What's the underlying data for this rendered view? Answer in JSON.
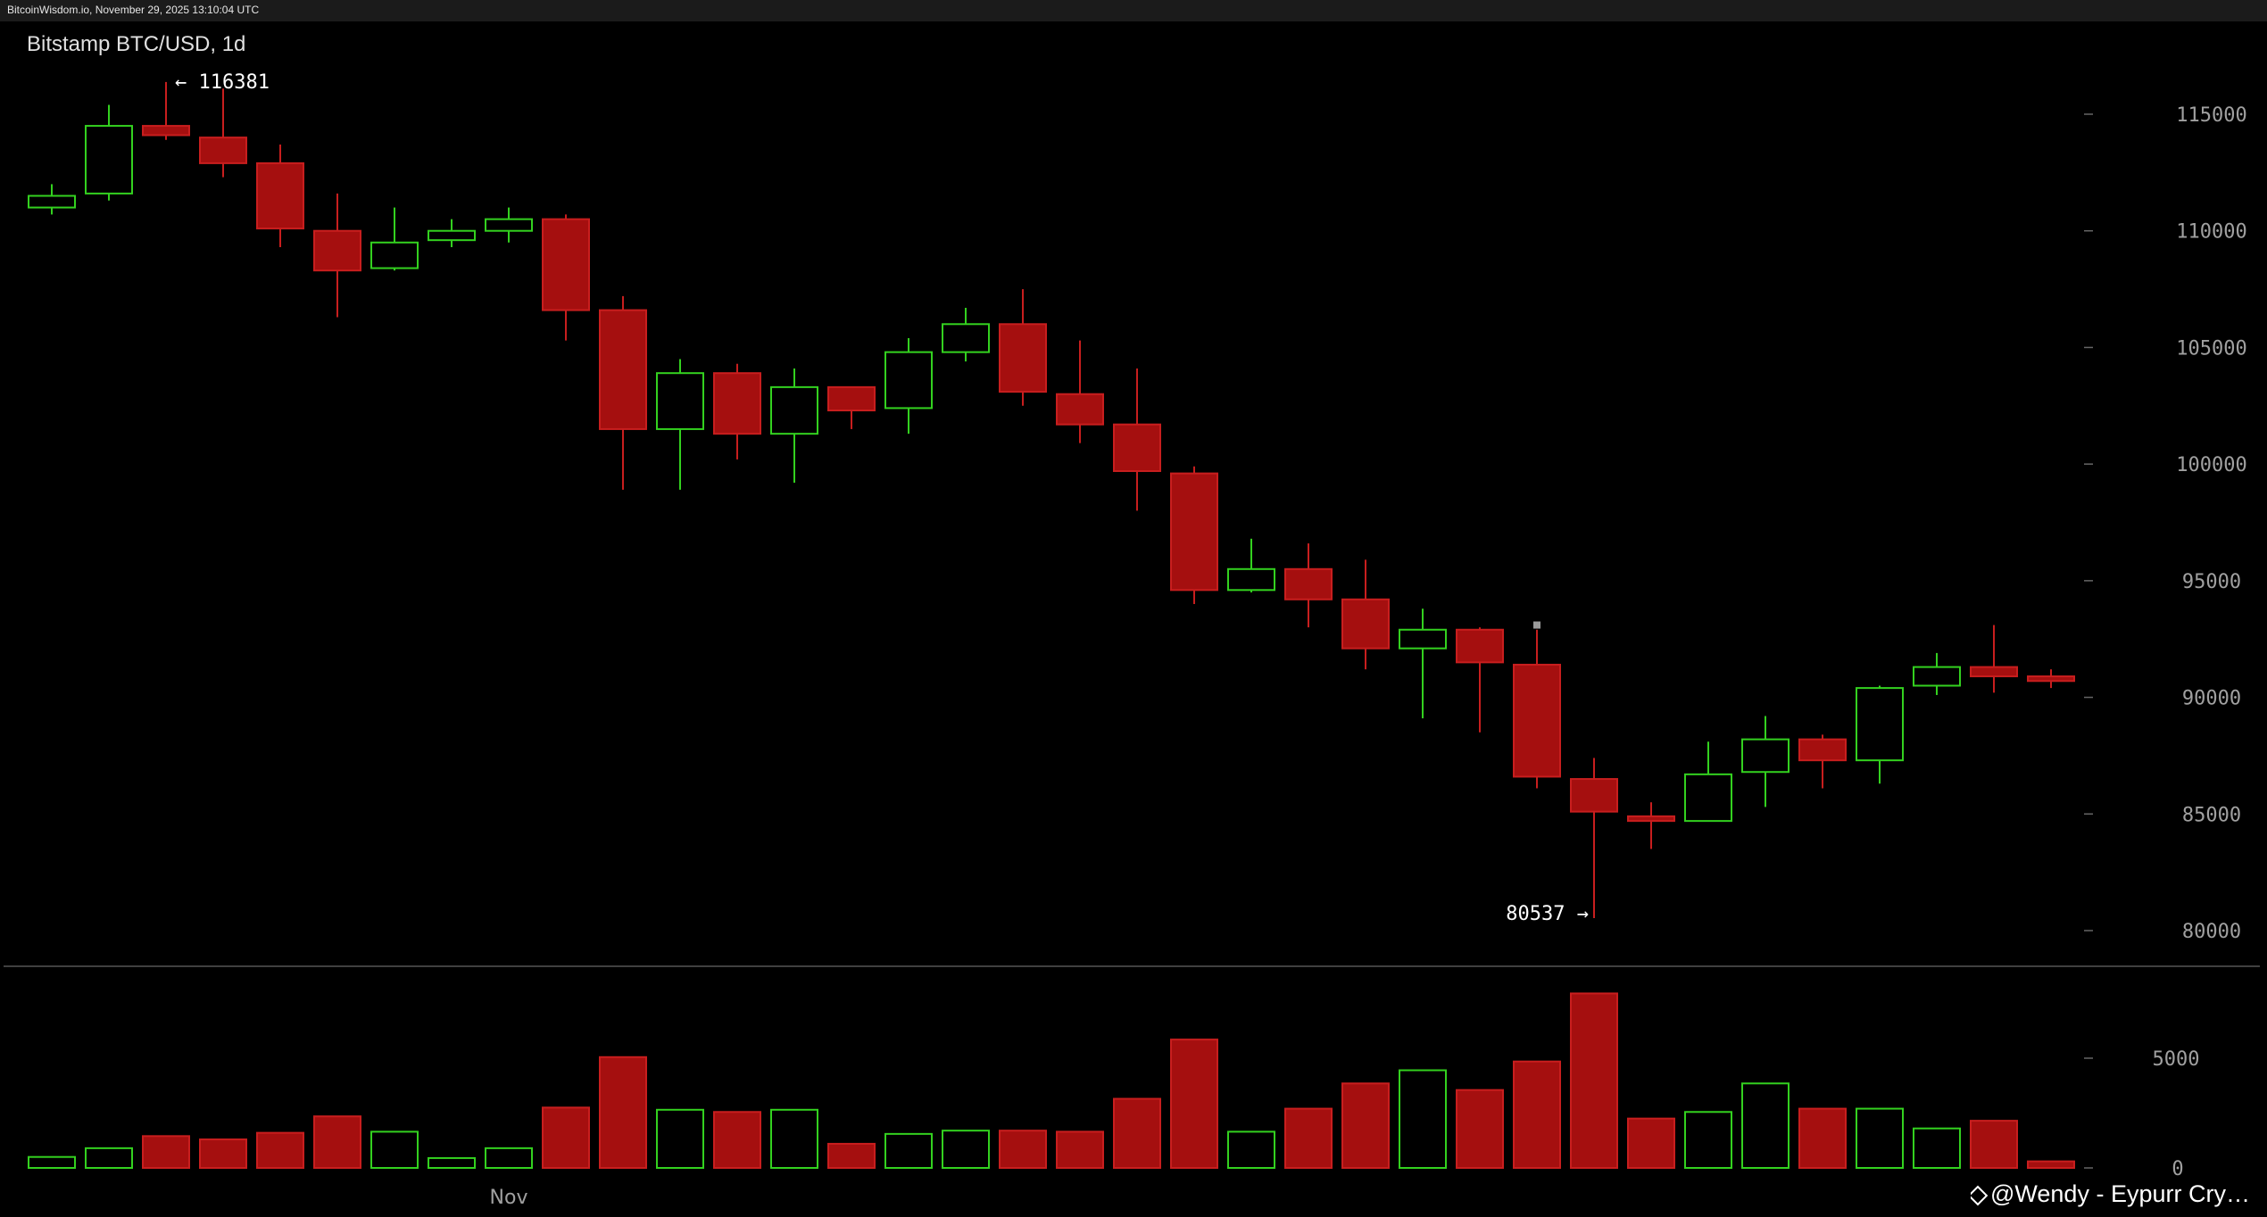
{
  "header": {
    "source_text": "BitcoinWisdom.io, November 29, 2025 13:10:04 UTC"
  },
  "watermark": {
    "text": "@Wendy - Eypurr Crypt...",
    "icon": "diamond-icon"
  },
  "colors": {
    "up": "#33d11f",
    "down": "#a50f0f",
    "down_edge": "#c81e1e",
    "grid_text": "#a0a0a0",
    "separator": "#555555"
  },
  "chart_data": {
    "type": "candlestick",
    "title": "Bitstamp BTC/USD, 1d",
    "price_axis": {
      "ticks": [
        80000,
        85000,
        90000,
        95000,
        100000,
        105000,
        110000,
        115000
      ],
      "range": [
        77500,
        118500
      ]
    },
    "volume_axis": {
      "ticks": [
        0,
        5000
      ],
      "range": [
        0,
        8200
      ]
    },
    "x_labels": [
      {
        "index": 8,
        "label": "Nov"
      }
    ],
    "annotations": [
      {
        "label": "← 116381",
        "value": 116381,
        "index": 2,
        "side": "right"
      },
      {
        "label": "80537 →",
        "value": 80537,
        "index": 27,
        "side": "left"
      }
    ],
    "candles": [
      {
        "o": 111000,
        "h": 112000,
        "l": 110700,
        "c": 111500,
        "v": 500
      },
      {
        "o": 111600,
        "h": 115400,
        "l": 111300,
        "c": 114500,
        "v": 900
      },
      {
        "o": 114500,
        "h": 116381,
        "l": 113900,
        "c": 114100,
        "v": 1450
      },
      {
        "o": 114000,
        "h": 116100,
        "l": 112300,
        "c": 112900,
        "v": 1300
      },
      {
        "o": 112900,
        "h": 113700,
        "l": 109300,
        "c": 110100,
        "v": 1600
      },
      {
        "o": 110000,
        "h": 111600,
        "l": 106300,
        "c": 108300,
        "v": 2350
      },
      {
        "o": 108400,
        "h": 111000,
        "l": 108300,
        "c": 109500,
        "v": 1650
      },
      {
        "o": 109600,
        "h": 110500,
        "l": 109300,
        "c": 110000,
        "v": 450
      },
      {
        "o": 110000,
        "h": 111000,
        "l": 109500,
        "c": 110500,
        "v": 900
      },
      {
        "o": 110500,
        "h": 110700,
        "l": 105300,
        "c": 106600,
        "v": 2750
      },
      {
        "o": 106600,
        "h": 107200,
        "l": 98900,
        "c": 101500,
        "v": 5050
      },
      {
        "o": 101500,
        "h": 104500,
        "l": 98900,
        "c": 103900,
        "v": 2650
      },
      {
        "o": 103900,
        "h": 104300,
        "l": 100200,
        "c": 101300,
        "v": 2550
      },
      {
        "o": 101300,
        "h": 104100,
        "l": 99200,
        "c": 103300,
        "v": 2650
      },
      {
        "o": 103300,
        "h": 103300,
        "l": 101500,
        "c": 102300,
        "v": 1100
      },
      {
        "o": 102400,
        "h": 105400,
        "l": 101300,
        "c": 104800,
        "v": 1550
      },
      {
        "o": 104800,
        "h": 106700,
        "l": 104400,
        "c": 106000,
        "v": 1700
      },
      {
        "o": 106000,
        "h": 107500,
        "l": 102500,
        "c": 103100,
        "v": 1700
      },
      {
        "o": 103000,
        "h": 105300,
        "l": 100900,
        "c": 101700,
        "v": 1650
      },
      {
        "o": 101700,
        "h": 104100,
        "l": 98000,
        "c": 99700,
        "v": 3150
      },
      {
        "o": 99600,
        "h": 99900,
        "l": 94000,
        "c": 94600,
        "v": 5850
      },
      {
        "o": 94600,
        "h": 96800,
        "l": 94500,
        "c": 95500,
        "v": 1650
      },
      {
        "o": 95500,
        "h": 96600,
        "l": 93000,
        "c": 94200,
        "v": 2700
      },
      {
        "o": 94200,
        "h": 95900,
        "l": 91200,
        "c": 92100,
        "v": 3850
      },
      {
        "o": 92100,
        "h": 93800,
        "l": 89100,
        "c": 92900,
        "v": 4450
      },
      {
        "o": 92900,
        "h": 93000,
        "l": 88500,
        "c": 91500,
        "v": 3550
      },
      {
        "o": 91400,
        "h": 92900,
        "l": 86100,
        "c": 86600,
        "v": 4850
      },
      {
        "o": 86500,
        "h": 87400,
        "l": 80537,
        "c": 85100,
        "v": 7950
      },
      {
        "o": 84900,
        "h": 85500,
        "l": 83500,
        "c": 84700,
        "v": 2250
      },
      {
        "o": 84700,
        "h": 88100,
        "l": 84700,
        "c": 86700,
        "v": 2550
      },
      {
        "o": 86800,
        "h": 89200,
        "l": 85300,
        "c": 88200,
        "v": 3850
      },
      {
        "o": 88200,
        "h": 88400,
        "l": 86100,
        "c": 87300,
        "v": 2700
      },
      {
        "o": 87300,
        "h": 90500,
        "l": 86300,
        "c": 90400,
        "v": 2700
      },
      {
        "o": 90500,
        "h": 91900,
        "l": 90100,
        "c": 91300,
        "v": 1800
      },
      {
        "o": 91300,
        "h": 93100,
        "l": 90200,
        "c": 90900,
        "v": 2150
      },
      {
        "o": 90900,
        "h": 91200,
        "l": 90400,
        "c": 90700,
        "v": 300
      }
    ]
  }
}
